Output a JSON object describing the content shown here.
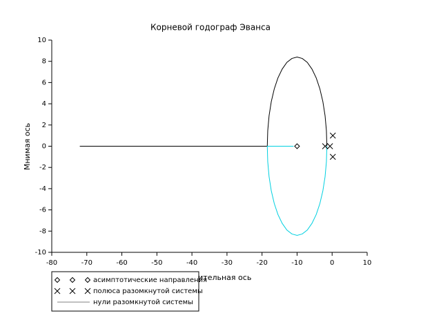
{
  "chart_data": {
    "type": "root-locus",
    "title": "Корневой годограф Эванса",
    "x_label": "Действительная ось",
    "y_label": "Мнимая ось",
    "xlim": [
      -80,
      10
    ],
    "ylim": [
      -10,
      10
    ],
    "xticks": [
      -80,
      -70,
      -60,
      -50,
      -40,
      -30,
      -20,
      -10,
      0,
      10
    ],
    "yticks": [
      -10,
      -8,
      -6,
      -4,
      -2,
      0,
      2,
      4,
      6,
      8,
      10
    ],
    "branches": [
      {
        "color": "#000000",
        "x": [
          -72,
          -18.5,
          -18.37,
          -17.99,
          -17.36,
          -16.51,
          -15.47,
          -14.25,
          -12.91,
          -11.48,
          -10,
          -8.52,
          -7.09,
          -5.75,
          -4.53,
          -3.49,
          -2.64,
          -2.01,
          -1.63,
          -1.5
        ],
        "y": [
          0,
          0,
          1.46,
          2.87,
          4.2,
          5.4,
          6.43,
          7.27,
          7.9,
          8.27,
          8.4,
          8.27,
          7.9,
          7.27,
          6.43,
          5.4,
          4.2,
          2.87,
          1.46,
          0
        ]
      },
      {
        "color": "#00d0e0",
        "x": [
          -11,
          -18.5,
          -18.37,
          -17.99,
          -17.36,
          -16.51,
          -15.47,
          -14.25,
          -12.91,
          -11.48,
          -10,
          -8.52,
          -7.09,
          -5.75,
          -4.53,
          -3.49,
          -2.64,
          -2.01,
          -1.63,
          -1.5
        ],
        "y": [
          0,
          0,
          -1.46,
          -2.87,
          -4.2,
          -5.4,
          -6.43,
          -7.27,
          -7.9,
          -8.27,
          -8.4,
          -8.27,
          -7.9,
          -7.27,
          -6.43,
          -5.4,
          -4.2,
          -2.87,
          -1.46,
          0
        ]
      }
    ],
    "series": [
      {
        "name": "асимптотические направления",
        "marker": "diamond",
        "color": "#000000",
        "x": [
          -10
        ],
        "y": [
          0
        ]
      },
      {
        "name": "полюса разомкнутой системы",
        "marker": "cross",
        "color": "#000000",
        "x": [
          0.2,
          0.2,
          -2,
          -0.6
        ],
        "y": [
          1,
          -1,
          0,
          0
        ]
      },
      {
        "name": "нули разомкнутой системы",
        "marker": "line",
        "color": "#808080",
        "x": [],
        "y": []
      }
    ]
  }
}
